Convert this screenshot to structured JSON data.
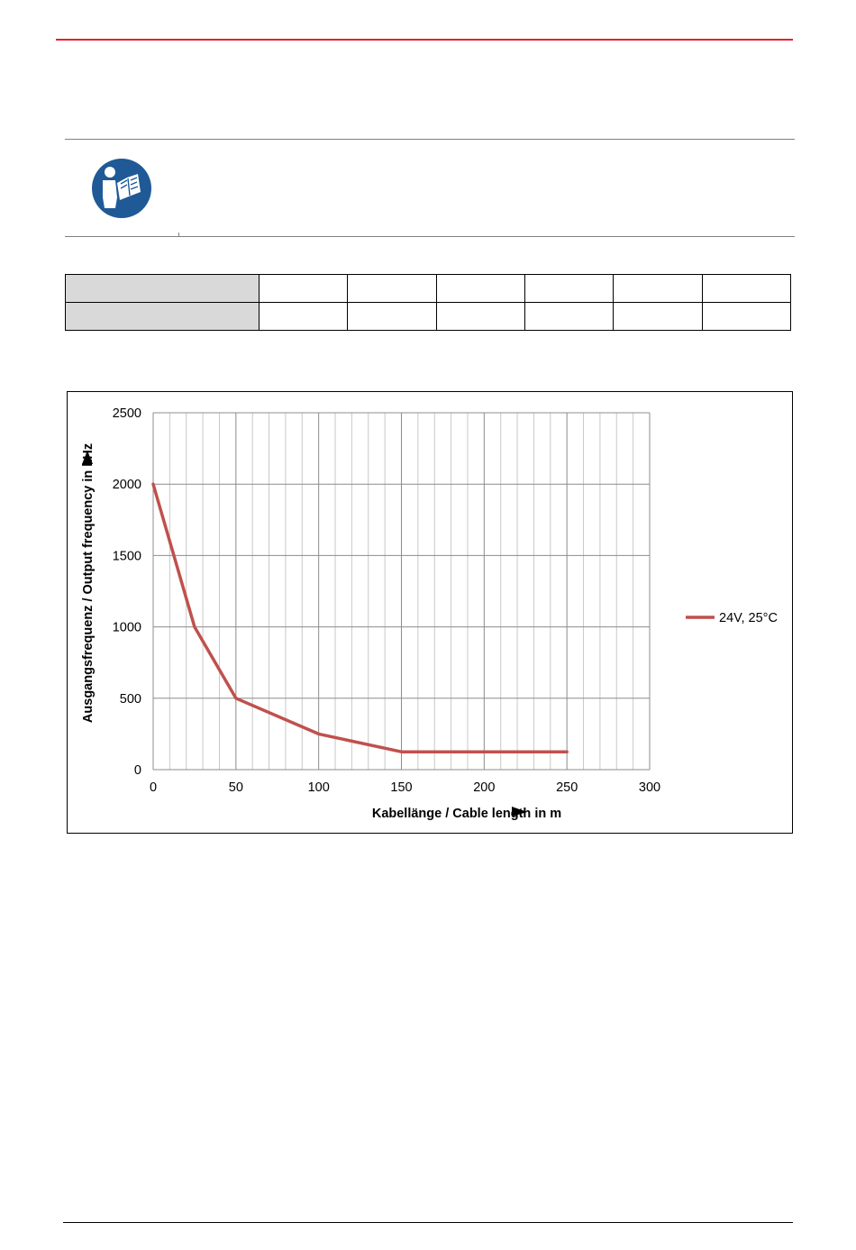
{
  "document": {
    "table_rows": [
      [
        "",
        "",
        "",
        "",
        "",
        "",
        ""
      ],
      [
        "",
        "",
        "",
        "",
        "",
        "",
        ""
      ]
    ]
  },
  "icons": {
    "note": "read-manual-icon"
  },
  "colors": {
    "header_rule": "#e8202a",
    "icon_blue": "#1f5a96",
    "series": "#c0504d",
    "table_header_fill": "#d9d9d9"
  },
  "chart_data": {
    "type": "line",
    "xlabel": "Kabellänge / Cable length in m",
    "ylabel": "Ausgangsfrequenz / Output frequency in kHz",
    "xlim": [
      0,
      300
    ],
    "ylim": [
      0,
      2500
    ],
    "x_ticks": [
      0,
      50,
      100,
      150,
      200,
      250,
      300
    ],
    "y_ticks": [
      0,
      500,
      1000,
      1500,
      2000,
      2500
    ],
    "x_minor_step": 10,
    "grid": true,
    "legend": "right",
    "series": [
      {
        "name": "24V, 25°C",
        "color": "#c0504d",
        "x": [
          0,
          25,
          50,
          100,
          150,
          250
        ],
        "y": [
          2000,
          1000,
          500,
          250,
          125,
          125
        ]
      }
    ]
  }
}
